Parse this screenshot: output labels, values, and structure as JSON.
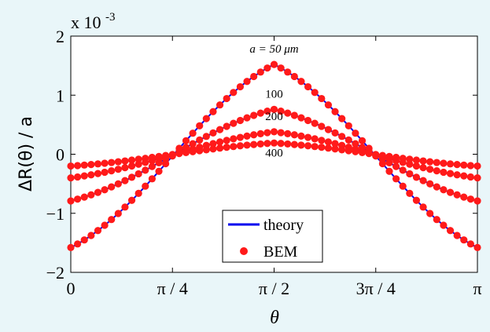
{
  "chart_data": {
    "type": "scatter",
    "title": "",
    "xlabel": "θ",
    "ylabel": "ΔR(θ) / a",
    "y_exponent_label": "x 10",
    "y_exponent_power": "-3",
    "xlim": [
      0,
      3.14159265
    ],
    "ylim": [
      -2,
      2
    ],
    "x_ticks": [
      0,
      0.78539816,
      1.57079633,
      2.35619449,
      3.14159265
    ],
    "x_tick_labels": [
      "0",
      "π / 4",
      "π / 2",
      "3π / 4",
      "π"
    ],
    "y_ticks": [
      -2,
      -1,
      0,
      1,
      2
    ],
    "y_tick_labels": [
      "−2",
      "−1",
      "0",
      "1",
      "2"
    ],
    "grid": false,
    "colors": {
      "theory": "#0000ee",
      "bem": "#ff1a1a",
      "background": "#e9f6f9",
      "plot_area": "#ffffff"
    },
    "legend": {
      "placement": "bottom-center",
      "entries": [
        {
          "label": "theory",
          "marker": "line",
          "color": "#0000ee"
        },
        {
          "label": "BEM",
          "marker": "dot",
          "color": "#ff1a1a"
        }
      ]
    },
    "series_profile": {
      "description_formula": "value(θ) = peak − (peak − base)·(1 − 2|θ − π/2|/π)^1 smoothing",
      "points_per_curve": 60
    },
    "series": [
      {
        "name": "a = 50 μm",
        "label_text": "a = 50 μm",
        "peak": 1.52,
        "edge": -1.58,
        "annotation_y": 1.72
      },
      {
        "name": "100",
        "label_text": "100",
        "peak": 0.76,
        "edge": -0.79,
        "annotation_y": 0.96
      },
      {
        "name": "200",
        "label_text": "200",
        "peak": 0.38,
        "edge": -0.4,
        "annotation_y": 0.58
      },
      {
        "name": "400",
        "label_text": "400",
        "peak": 0.19,
        "edge": -0.2,
        "annotation_y": -0.04
      }
    ]
  }
}
